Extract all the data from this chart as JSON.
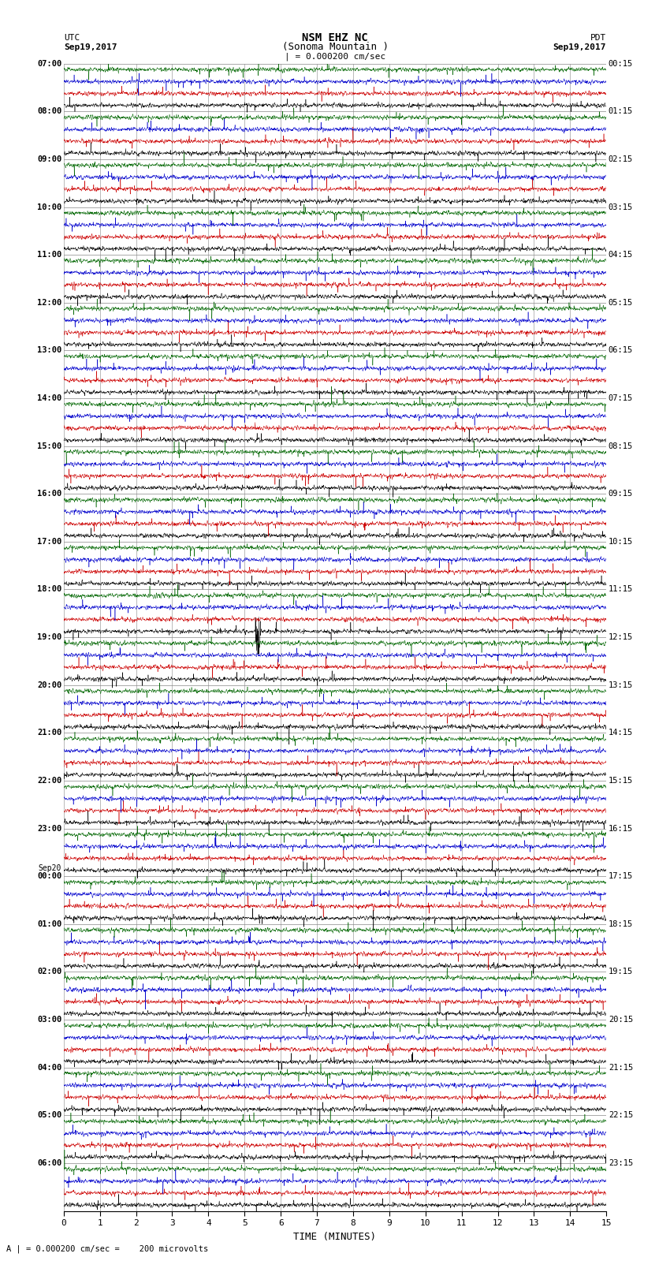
{
  "title_line1": "NSM EHZ NC",
  "title_line2": "(Sonoma Mountain )",
  "scale_label": "| = 0.000200 cm/sec",
  "left_header_line1": "UTC",
  "left_header_line2": "Sep19,2017",
  "right_header_line1": "PDT",
  "right_header_line2": "Sep19,2017",
  "footer_note": "A | = 0.000200 cm/sec =    200 microvolts",
  "xlabel": "TIME (MINUTES)",
  "num_rows": 24,
  "traces_per_row": 4,
  "minutes_per_row": 15,
  "bg_color": "#ffffff",
  "trace_colors": [
    "#000000",
    "#cc0000",
    "#0000cc",
    "#006600"
  ],
  "grid_color": "#888888",
  "figwidth": 8.5,
  "figheight": 16.13,
  "left_ticks": [
    "07:00",
    "08:00",
    "09:00",
    "10:00",
    "11:00",
    "12:00",
    "13:00",
    "14:00",
    "15:00",
    "16:00",
    "17:00",
    "18:00",
    "19:00",
    "20:00",
    "21:00",
    "22:00",
    "23:00",
    "Sep20\n00:00",
    "01:00",
    "02:00",
    "03:00",
    "04:00",
    "05:00",
    "06:00"
  ],
  "right_ticks": [
    "00:15",
    "01:15",
    "02:15",
    "03:15",
    "04:15",
    "05:15",
    "06:15",
    "07:15",
    "08:15",
    "09:15",
    "10:15",
    "11:15",
    "12:15",
    "13:15",
    "14:15",
    "15:15",
    "16:15",
    "17:15",
    "18:15",
    "19:15",
    "20:15",
    "21:15",
    "22:15",
    "23:15"
  ],
  "x_ticks": [
    0,
    1,
    2,
    3,
    4,
    5,
    6,
    7,
    8,
    9,
    10,
    11,
    12,
    13,
    14,
    15
  ],
  "special_event_row": 11,
  "special_event_trace": 0,
  "special_event_minute": 5.3
}
